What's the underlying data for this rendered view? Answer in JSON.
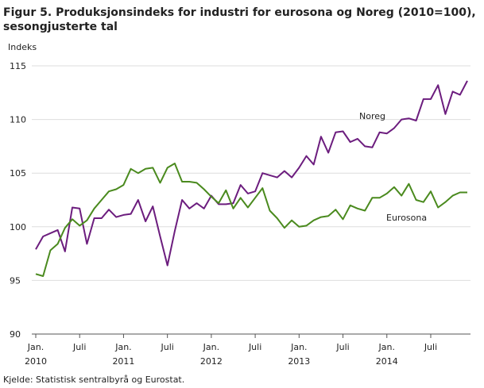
{
  "chart_data": {
    "type": "line",
    "title": "Figur 5. Produksjonsindeks for industri for eurosona og Noreg (2010=100),\nsesongjusterte tal",
    "y_label": "Indeks",
    "source": "Kjelde: Statistisk sentralbyrå og Eurostat.",
    "categories": [
      "Jan.\n2010",
      null,
      null,
      null,
      null,
      null,
      "Juli",
      null,
      null,
      null,
      null,
      null,
      "Jan.\n2011",
      null,
      null,
      null,
      null,
      null,
      "Juli",
      null,
      null,
      null,
      null,
      null,
      "Jan.\n2012",
      null,
      null,
      null,
      null,
      null,
      "Juli",
      null,
      null,
      null,
      null,
      null,
      "Jan.\n2013",
      null,
      null,
      null,
      null,
      null,
      "Juli",
      null,
      null,
      null,
      null,
      null,
      "Jan.\n2014",
      null,
      null,
      null,
      null,
      null,
      "Juli",
      null,
      null,
      null,
      null,
      null
    ],
    "ylim": [
      90,
      115
    ],
    "yticks": [
      90,
      95,
      100,
      105,
      110,
      115
    ],
    "grid": true,
    "series": [
      {
        "name": "Noreg",
        "color": "#6c1d7e",
        "values": [
          97.9,
          99.1,
          99.4,
          99.7,
          97.7,
          101.8,
          101.7,
          98.4,
          100.8,
          100.8,
          101.6,
          100.9,
          101.1,
          101.2,
          102.5,
          100.5,
          101.9,
          99.1,
          96.4,
          99.6,
          102.5,
          101.7,
          102.2,
          101.7,
          102.9,
          102.1,
          102.1,
          102.2,
          103.9,
          103.1,
          103.3,
          105.0,
          104.8,
          104.6,
          105.2,
          104.6,
          105.5,
          106.6,
          105.8,
          108.4,
          106.9,
          108.8,
          108.9,
          107.9,
          108.2,
          107.5,
          107.4,
          108.8,
          108.7,
          109.2,
          110.0,
          110.1,
          109.9,
          111.9,
          111.9,
          113.2,
          110.5,
          112.6,
          112.3,
          113.6
        ]
      },
      {
        "name": "Eurosona",
        "color": "#4a8a1e",
        "values": [
          95.6,
          95.4,
          97.8,
          98.4,
          99.9,
          100.7,
          100.1,
          100.6,
          101.7,
          102.5,
          103.3,
          103.5,
          103.9,
          105.4,
          105.0,
          105.4,
          105.5,
          104.1,
          105.5,
          105.9,
          104.2,
          104.2,
          104.1,
          103.5,
          102.8,
          102.2,
          103.4,
          101.7,
          102.7,
          101.8,
          102.7,
          103.6,
          101.5,
          100.8,
          99.9,
          100.6,
          100.0,
          100.1,
          100.6,
          100.9,
          101.0,
          101.6,
          100.7,
          102.0,
          101.7,
          101.5,
          102.7,
          102.7,
          103.1,
          103.7,
          102.9,
          104.0,
          102.5,
          102.3,
          103.3,
          101.8,
          102.3,
          102.9,
          103.2,
          103.2
        ]
      }
    ]
  }
}
